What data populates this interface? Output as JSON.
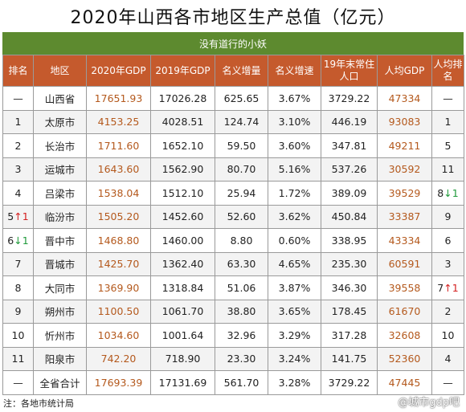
{
  "title": "2020年山西各市地区生产总值（亿元）",
  "banner": "没有道行的小妖",
  "headers": [
    "排名",
    "地区",
    "2020年GDP",
    "2019年GDP",
    "名义增量",
    "名义增速",
    "19年末常住人口",
    "人均GDP",
    "人均排名"
  ],
  "rows": [
    {
      "rank": "—",
      "rank_arrow": "",
      "region": "山西省",
      "gdp2020": "17651.93",
      "gdp2019": "17026.28",
      "increase": "625.65",
      "growth": "3.67%",
      "pop": "3729.22",
      "per_capita": "47334",
      "pc_rank": "—",
      "pc_arrow": ""
    },
    {
      "rank": "1",
      "rank_arrow": "",
      "region": "太原市",
      "gdp2020": "4153.25",
      "gdp2019": "4028.51",
      "increase": "124.74",
      "growth": "3.10%",
      "pop": "446.19",
      "per_capita": "93083",
      "pc_rank": "1",
      "pc_arrow": ""
    },
    {
      "rank": "2",
      "rank_arrow": "",
      "region": "长治市",
      "gdp2020": "1711.60",
      "gdp2019": "1652.10",
      "increase": "59.50",
      "growth": "3.60%",
      "pop": "347.81",
      "per_capita": "49211",
      "pc_rank": "5",
      "pc_arrow": ""
    },
    {
      "rank": "3",
      "rank_arrow": "",
      "region": "运城市",
      "gdp2020": "1643.60",
      "gdp2019": "1562.90",
      "increase": "80.70",
      "growth": "5.16%",
      "pop": "537.26",
      "per_capita": "30592",
      "pc_rank": "11",
      "pc_arrow": ""
    },
    {
      "rank": "4",
      "rank_arrow": "",
      "region": "吕梁市",
      "gdp2020": "1538.04",
      "gdp2019": "1512.10",
      "increase": "25.94",
      "growth": "1.72%",
      "pop": "389.09",
      "per_capita": "39529",
      "pc_rank": "8",
      "pc_arrow": "↓1"
    },
    {
      "rank": "5",
      "rank_arrow": "↑1",
      "region": "临汾市",
      "gdp2020": "1505.20",
      "gdp2019": "1452.60",
      "increase": "52.60",
      "growth": "3.62%",
      "pop": "450.84",
      "per_capita": "33387",
      "pc_rank": "9",
      "pc_arrow": ""
    },
    {
      "rank": "6",
      "rank_arrow": "↓1",
      "region": "晋中市",
      "gdp2020": "1468.80",
      "gdp2019": "1460.00",
      "increase": "8.80",
      "growth": "0.60%",
      "pop": "338.95",
      "per_capita": "43334",
      "pc_rank": "6",
      "pc_arrow": ""
    },
    {
      "rank": "7",
      "rank_arrow": "",
      "region": "晋城市",
      "gdp2020": "1425.70",
      "gdp2019": "1362.40",
      "increase": "63.30",
      "growth": "4.65%",
      "pop": "235.30",
      "per_capita": "60591",
      "pc_rank": "3",
      "pc_arrow": ""
    },
    {
      "rank": "8",
      "rank_arrow": "",
      "region": "大同市",
      "gdp2020": "1369.90",
      "gdp2019": "1318.84",
      "increase": "51.06",
      "growth": "3.87%",
      "pop": "346.30",
      "per_capita": "39558",
      "pc_rank": "7",
      "pc_arrow": "↑1"
    },
    {
      "rank": "9",
      "rank_arrow": "",
      "region": "朔州市",
      "gdp2020": "1100.50",
      "gdp2019": "1061.70",
      "increase": "38.80",
      "growth": "3.65%",
      "pop": "178.45",
      "per_capita": "61670",
      "pc_rank": "2",
      "pc_arrow": ""
    },
    {
      "rank": "10",
      "rank_arrow": "",
      "region": "忻州市",
      "gdp2020": "1034.60",
      "gdp2019": "1001.64",
      "increase": "32.96",
      "growth": "3.29%",
      "pop": "317.28",
      "per_capita": "32608",
      "pc_rank": "10",
      "pc_arrow": ""
    },
    {
      "rank": "11",
      "rank_arrow": "",
      "region": "阳泉市",
      "gdp2020": "742.20",
      "gdp2019": "718.90",
      "increase": "23.30",
      "growth": "3.24%",
      "pop": "141.75",
      "per_capita": "52360",
      "pc_rank": "4",
      "pc_arrow": ""
    },
    {
      "rank": "—",
      "rank_arrow": "",
      "region": "全省合计",
      "gdp2020": "17693.39",
      "gdp2019": "17131.69",
      "increase": "561.70",
      "growth": "3.28%",
      "pop": "3729.22",
      "per_capita": "47445",
      "pc_rank": "—",
      "pc_arrow": ""
    }
  ],
  "footnote": "注：各地市统计局",
  "watermark": "@城市gdp吧",
  "colors": {
    "header_bg": "#c55a2d",
    "banner_bg": "#5d8a2f",
    "value_orange": "#b4591d",
    "arrow_up": "#d42020",
    "arrow_down": "#1f9a3a"
  }
}
